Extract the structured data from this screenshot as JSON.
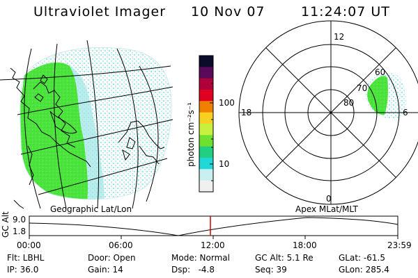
{
  "header": {
    "instrument": "Ultraviolet Imager",
    "date": "10 Nov 07",
    "time": "11:24:07 UT"
  },
  "colorbar": {
    "unit_label": "photon cm⁻²s⁻¹",
    "ticks": [
      "100",
      "10"
    ],
    "colors": [
      "#0b0b2a",
      "#5a0a5a",
      "#b0003a",
      "#e00020",
      "#f08000",
      "#f8d020",
      "#c8f040",
      "#70e030",
      "#20d080",
      "#20d8d8",
      "#c8f0f0",
      "#f0f0f0"
    ]
  },
  "left_map": {
    "caption": "Geographic Lat/Lon",
    "emission_color": "#4be33c",
    "scatter_color": "#9fe6e6"
  },
  "right_polar": {
    "caption": "Apex MLat/MLT",
    "mlt_labels": {
      "top": "12",
      "left": "18",
      "right": "6",
      "bottom": "0"
    },
    "lat_labels": [
      "60",
      "70",
      "80"
    ]
  },
  "altitude_plot": {
    "ylabel": "GC Alt",
    "y_ticks": [
      "9.0",
      "1.8"
    ],
    "x_ticks": [
      "00:00",
      "06:00",
      "12:00",
      "18:00",
      "23:59"
    ],
    "current_time_marker": "11:24",
    "marker_color": "#d00000"
  },
  "footer": {
    "filter": "Flt: LBHL",
    "ip": "IP: 36.0",
    "door": "Door: Open",
    "gain": "Gain: 14",
    "mode": "Mode: Normal",
    "dsp": "Dsp:   -4.8",
    "gc_alt": "GC Alt: 5.1 Re",
    "seq": "Seq: 39",
    "glat": "GLat: -61.5",
    "glon": "GLon: 285.4"
  }
}
